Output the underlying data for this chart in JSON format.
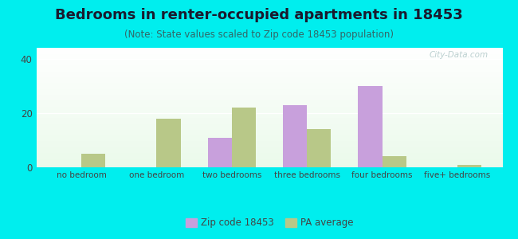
{
  "title": "Bedrooms in renter-occupied apartments in 18453",
  "subtitle": "(Note: State values scaled to Zip code 18453 population)",
  "categories": [
    "no bedroom",
    "one bedroom",
    "two bedrooms",
    "three bedrooms",
    "four bedrooms",
    "five+ bedrooms"
  ],
  "zip_values": [
    0,
    0,
    11,
    23,
    30,
    0
  ],
  "pa_values": [
    5,
    18,
    22,
    14,
    4,
    1
  ],
  "zip_color": "#c8a0dc",
  "pa_color": "#b8c888",
  "background_color": "#00eeee",
  "ylim": [
    0,
    44
  ],
  "yticks": [
    0,
    20,
    40
  ],
  "legend_zip_label": "Zip code 18453",
  "legend_pa_label": "PA average",
  "title_fontsize": 13,
  "subtitle_fontsize": 8.5,
  "bar_width": 0.32
}
